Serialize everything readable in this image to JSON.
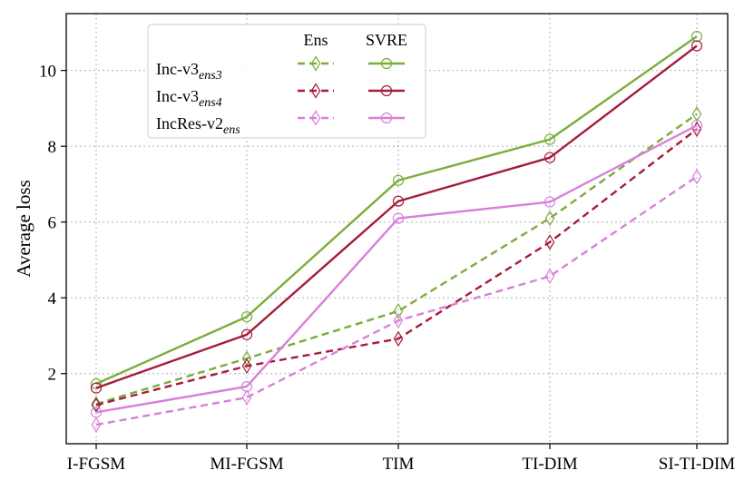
{
  "chart_data": {
    "type": "line",
    "title": "",
    "xlabel": "",
    "ylabel": "Average loss",
    "categories": [
      "I-FGSM",
      "MI-FGSM",
      "TIM",
      "TI-DIM",
      "SI-TI-DIM"
    ],
    "ylim": [
      0.15,
      11.5
    ],
    "yticks": [
      2,
      4,
      6,
      8,
      10
    ],
    "grid": true,
    "legend": {
      "placement": "top-left",
      "headers": [
        "Ens",
        "SVRE"
      ],
      "rows": [
        {
          "label_main": "Inc-v3",
          "label_sub": "ens3"
        },
        {
          "label_main": "Inc-v3",
          "label_sub": "ens4"
        },
        {
          "label_main": "IncRes-v2",
          "label_sub": "ens"
        }
      ]
    },
    "series": [
      {
        "name": "Inc-v3ens3 Ens",
        "model": "Inc-v3ens3",
        "method": "Ens",
        "color": "#7aad3a",
        "style": "dashed",
        "marker": "diamond",
        "values": [
          1.2,
          2.4,
          3.65,
          6.1,
          8.85
        ]
      },
      {
        "name": "Inc-v3ens4 Ens",
        "model": "Inc-v3ens4",
        "method": "Ens",
        "color": "#a51c3a",
        "style": "dashed",
        "marker": "diamond",
        "values": [
          1.17,
          2.2,
          2.92,
          5.47,
          8.45
        ]
      },
      {
        "name": "IncRes-v2ens Ens",
        "model": "IncRes-v2ens",
        "method": "Ens",
        "color": "#d97fdb",
        "style": "dashed",
        "marker": "diamond",
        "values": [
          0.65,
          1.37,
          3.4,
          4.57,
          7.2
        ]
      },
      {
        "name": "Inc-v3ens3 SVRE",
        "model": "Inc-v3ens3",
        "method": "SVRE",
        "color": "#7aad3a",
        "style": "solid",
        "marker": "circle",
        "values": [
          1.73,
          3.5,
          7.1,
          8.18,
          10.9
        ]
      },
      {
        "name": "Inc-v3ens4 SVRE",
        "model": "Inc-v3ens4",
        "method": "SVRE",
        "color": "#a51c3a",
        "style": "solid",
        "marker": "circle",
        "values": [
          1.62,
          3.03,
          6.55,
          7.7,
          10.65
        ]
      },
      {
        "name": "IncRes-v2ens SVRE",
        "model": "IncRes-v2ens",
        "method": "SVRE",
        "color": "#d97fdb",
        "style": "solid",
        "marker": "circle",
        "values": [
          0.98,
          1.66,
          6.1,
          6.53,
          8.55
        ]
      }
    ]
  }
}
